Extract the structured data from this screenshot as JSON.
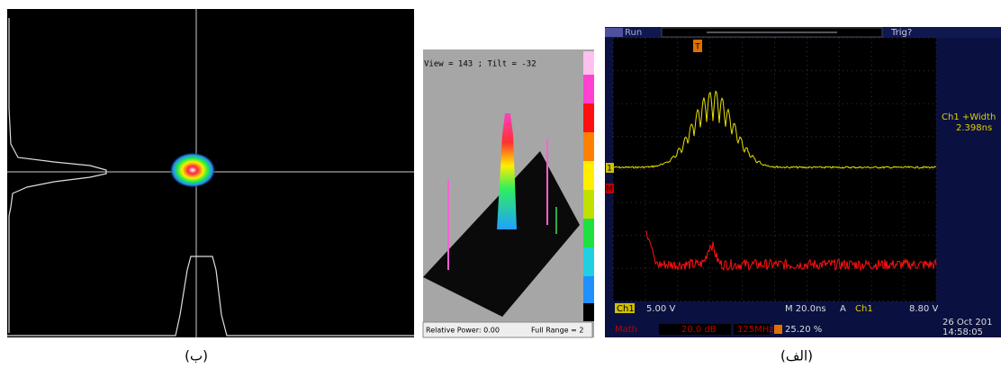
{
  "panels": {
    "left": {
      "caption": "(ب)"
    },
    "middle": {
      "view": "View = 143 ; Tilt = -32",
      "relative_power": "Relative Power: 0.00",
      "full_range": "Full Range = 2"
    },
    "right": {
      "caption": "(الف)",
      "status": "Run",
      "trigger": "Trig?",
      "trigger_marker": "T",
      "measurement_label": "Ch1 +Width",
      "measurement_value": "2.398ns",
      "ch1_marker": "1",
      "math_marker": "M",
      "ch1_label": "Ch1",
      "ch1_scale": "5.00 V",
      "timebase": "M 20.0ns",
      "trigger_mode": "A",
      "trigger_source": "Ch1",
      "trigger_level": "8.80 V",
      "math_label": "Math",
      "math_scale": "20.0 dB",
      "math_freq": "125MHz",
      "trigger_position": "25.20 %",
      "date": "26 Oct 201",
      "time": "14:58:05"
    }
  }
}
